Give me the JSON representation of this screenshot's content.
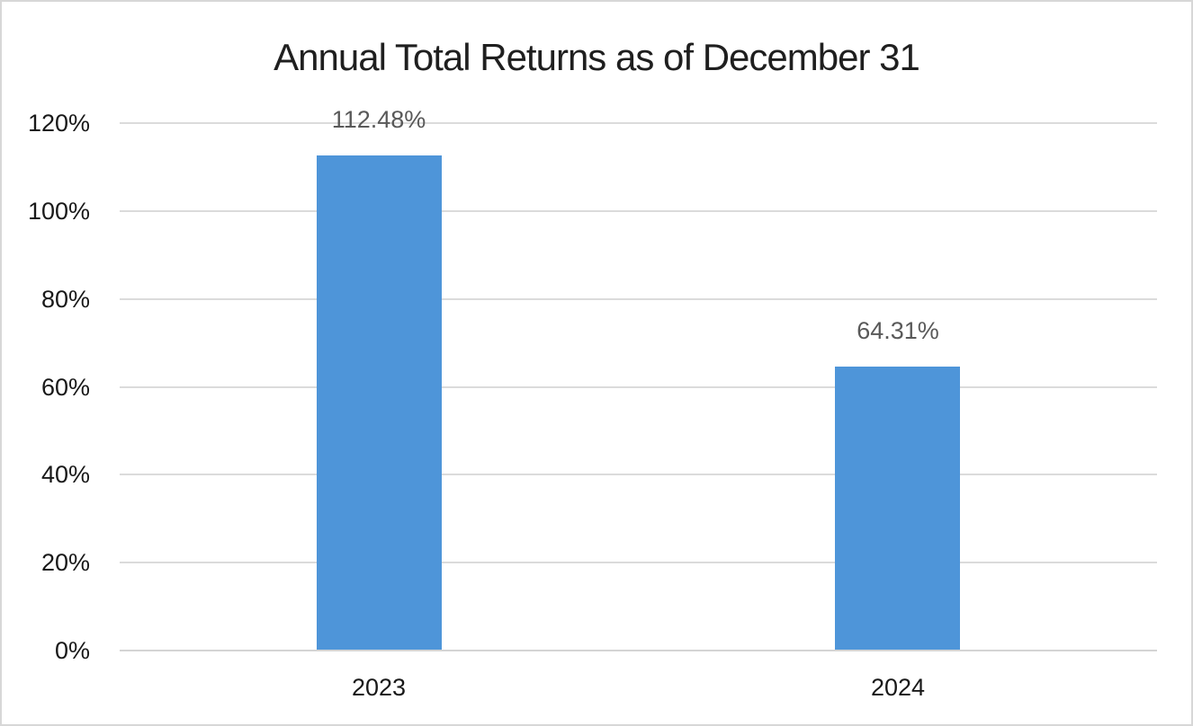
{
  "chart_data": {
    "type": "bar",
    "title": "Annual Total Returns as of December 31",
    "categories": [
      "2023",
      "2024"
    ],
    "values": [
      112.48,
      64.31
    ],
    "data_labels": [
      "112.48%",
      "64.31%"
    ],
    "xlabel": "",
    "ylabel": "",
    "ylim": [
      0,
      120
    ],
    "y_ticks": [
      {
        "value": 0,
        "label": "0%"
      },
      {
        "value": 20,
        "label": "20%"
      },
      {
        "value": 40,
        "label": "40%"
      },
      {
        "value": 60,
        "label": "60%"
      },
      {
        "value": 80,
        "label": "80%"
      },
      {
        "value": 100,
        "label": "100%"
      },
      {
        "value": 120,
        "label": "120%"
      }
    ],
    "grid": true,
    "legend": false,
    "colors": {
      "bar": "#4e95d9",
      "gridline": "#dbdbdb",
      "axis_line": "#d4d4d4",
      "title_text": "#1f1f1f",
      "tick_text": "#191919",
      "data_label_text": "#595959",
      "canvas_border": "#d7d7d7",
      "background": "#ffffff"
    }
  }
}
